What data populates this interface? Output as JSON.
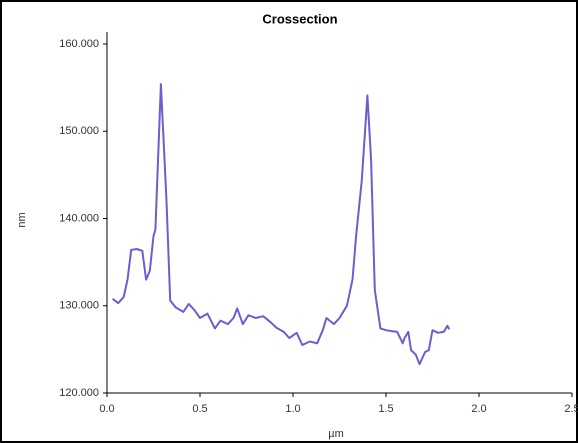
{
  "chart_data": {
    "type": "line",
    "title": "Crossection",
    "x_label": "µm",
    "y_label": "nm",
    "color": "#6a5fcf",
    "x": [
      0.03,
      0.06,
      0.09,
      0.11,
      0.13,
      0.16,
      0.19,
      0.21,
      0.23,
      0.25,
      0.26,
      0.29,
      0.32,
      0.34,
      0.37,
      0.41,
      0.44,
      0.47,
      0.5,
      0.54,
      0.58,
      0.61,
      0.65,
      0.68,
      0.7,
      0.73,
      0.76,
      0.8,
      0.84,
      0.88,
      0.91,
      0.95,
      0.98,
      1.02,
      1.05,
      1.09,
      1.13,
      1.16,
      1.18,
      1.22,
      1.25,
      1.29,
      1.32,
      1.34,
      1.37,
      1.4,
      1.42,
      1.44,
      1.47,
      1.5,
      1.53,
      1.56,
      1.59,
      1.6,
      1.62,
      1.635,
      1.66,
      1.68,
      1.71,
      1.73,
      1.75,
      1.78,
      1.81,
      1.83,
      1.84
    ],
    "values": [
      130.8,
      130.3,
      131,
      133,
      136.4,
      136.5,
      136.3,
      133,
      134,
      138,
      138.7,
      155.4,
      142,
      130.6,
      129.8,
      129.3,
      130.2,
      129.5,
      128.6,
      129.1,
      127.4,
      128.3,
      127.9,
      128.6,
      129.7,
      127.9,
      128.9,
      128.6,
      128.8,
      128.1,
      127.5,
      127,
      126.3,
      126.9,
      125.5,
      125.9,
      125.7,
      127.2,
      128.6,
      127.9,
      128.6,
      130,
      133,
      138.1,
      144.4,
      154.1,
      146.7,
      131.8,
      127.4,
      127.2,
      127.1,
      127,
      125.7,
      126.3,
      127,
      124.9,
      124.4,
      123.3,
      124.7,
      124.9,
      127.2,
      126.9,
      127,
      127.7,
      127.3
    ],
    "xlim": [
      0,
      2.5
    ],
    "ylim": [
      120,
      160
    ],
    "xticks": [
      {
        "value": 0,
        "label": "0.0"
      },
      {
        "value": 0.5,
        "label": "0.5"
      },
      {
        "value": 1,
        "label": "1.0"
      },
      {
        "value": 1.5,
        "label": "1.5"
      },
      {
        "value": 2,
        "label": "2.0"
      },
      {
        "value": 2.5,
        "label": "2.5"
      }
    ],
    "yticks": [
      {
        "value": 120,
        "label": "120.000"
      },
      {
        "value": 130,
        "label": "130.000"
      },
      {
        "value": 140,
        "label": "140.000"
      },
      {
        "value": 150,
        "label": "150.000"
      },
      {
        "value": 160,
        "label": "160.000"
      }
    ]
  }
}
